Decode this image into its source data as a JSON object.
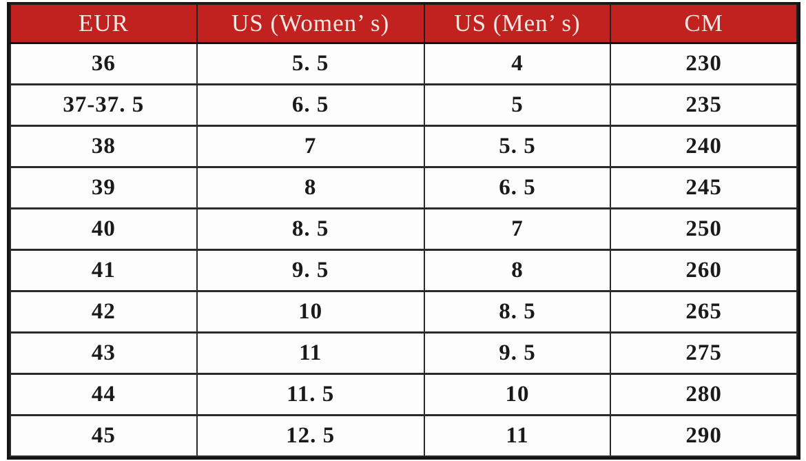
{
  "colors": {
    "header-bg": "#c1221f",
    "header-fg": "#f6e8e5",
    "border-strong": "#141414"
  },
  "table": {
    "columns": [
      "EUR",
      "US (Women’ s)",
      "US (Men’ s)",
      "CM"
    ],
    "rows": [
      [
        "36",
        "5. 5",
        "4",
        "230"
      ],
      [
        "37-37. 5",
        "6. 5",
        "5",
        "235"
      ],
      [
        "38",
        "7",
        "5. 5",
        "240"
      ],
      [
        "39",
        "8",
        "6. 5",
        "245"
      ],
      [
        "40",
        "8. 5",
        "7",
        "250"
      ],
      [
        "41",
        "9. 5",
        "8",
        "260"
      ],
      [
        "42",
        "10",
        "8. 5",
        "265"
      ],
      [
        "43",
        "11",
        "9. 5",
        "275"
      ],
      [
        "44",
        "11. 5",
        "10",
        "280"
      ],
      [
        "45",
        "12. 5",
        "11",
        "290"
      ]
    ]
  },
  "chart_data": {
    "type": "table",
    "columns": [
      "EUR",
      "US (Women's)",
      "US (Men's)",
      "CM"
    ],
    "rows": [
      [
        "36",
        "5.5",
        "4",
        "230"
      ],
      [
        "37-37.5",
        "6.5",
        "5",
        "235"
      ],
      [
        "38",
        "7",
        "5.5",
        "240"
      ],
      [
        "39",
        "8",
        "6.5",
        "245"
      ],
      [
        "40",
        "8.5",
        "7",
        "250"
      ],
      [
        "41",
        "9.5",
        "8",
        "260"
      ],
      [
        "42",
        "10",
        "8.5",
        "265"
      ],
      [
        "43",
        "11",
        "9.5",
        "275"
      ],
      [
        "44",
        "11.5",
        "10",
        "280"
      ],
      [
        "45",
        "12.5",
        "11",
        "290"
      ]
    ],
    "layout": {
      "header_bg": "#c1221f",
      "header_text": "#f6e8e5",
      "grid": "on"
    }
  }
}
